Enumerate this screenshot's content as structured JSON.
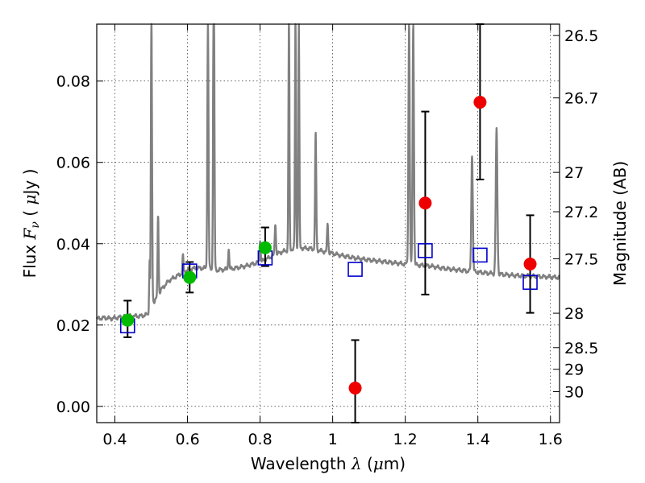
{
  "chart_data": {
    "type": "scatter",
    "title": "",
    "xlabel_parts": [
      "Wavelength ",
      "λ",
      " (",
      "μ",
      "m)"
    ],
    "ylabel_parts": [
      "Flux  ",
      "F",
      "ν",
      "  ( ",
      "μ",
      "Jy )"
    ],
    "y2label": "Magnitude (AB)",
    "xlim": [
      0.35,
      1.625
    ],
    "ylim": [
      -0.004,
      0.094
    ],
    "grid": true,
    "grid_style": "dotted",
    "x_ticks": [
      0.4,
      0.6,
      0.8,
      1.0,
      1.2,
      1.4,
      1.6
    ],
    "x_tick_labels": [
      "0.4",
      "0.6",
      "0.8",
      "1",
      "1.2",
      "1.4",
      "1.6"
    ],
    "y_ticks": [
      0.0,
      0.02,
      0.04,
      0.06,
      0.08
    ],
    "y_tick_labels": [
      "0.00",
      "0.02",
      "0.04",
      "0.06",
      "0.08"
    ],
    "y2_ticks": [
      {
        "label": "26.5",
        "mag": 26.5
      },
      {
        "label": "26.7",
        "mag": 26.7
      },
      {
        "label": "27",
        "mag": 27.0
      },
      {
        "label": "27.2",
        "mag": 27.2
      },
      {
        "label": "27.5",
        "mag": 27.5
      },
      {
        "label": "28",
        "mag": 28.0
      },
      {
        "label": "28.5",
        "mag": 28.5
      },
      {
        "label": "29",
        "mag": 29.0
      },
      {
        "label": "30",
        "mag": 30.0
      }
    ],
    "colors": {
      "spectrum": "#808080",
      "model_photometry": "#0000cc",
      "detected": "#00bb00",
      "upper_or_weak": "#ee0000",
      "errorbar": "#000000"
    },
    "series": [
      {
        "kind": "spectrum",
        "color": "#808080",
        "continuum": [
          [
            0.35,
            0.0215
          ],
          [
            0.37,
            0.0218
          ],
          [
            0.39,
            0.0216
          ],
          [
            0.42,
            0.022
          ],
          [
            0.45,
            0.0222
          ],
          [
            0.47,
            0.0222
          ],
          [
            0.49,
            0.0226
          ],
          [
            0.498,
            0.0235
          ],
          [
            0.502,
            0.0255
          ],
          [
            0.51,
            0.026
          ],
          [
            0.53,
            0.029
          ],
          [
            0.55,
            0.031
          ],
          [
            0.58,
            0.0325
          ],
          [
            0.6,
            0.0335
          ],
          [
            0.62,
            0.034
          ],
          [
            0.65,
            0.034
          ],
          [
            0.68,
            0.0335
          ],
          [
            0.72,
            0.0338
          ],
          [
            0.76,
            0.0345
          ],
          [
            0.8,
            0.0355
          ],
          [
            0.83,
            0.0368
          ],
          [
            0.86,
            0.038
          ],
          [
            0.9,
            0.039
          ],
          [
            0.94,
            0.0388
          ],
          [
            0.98,
            0.038
          ],
          [
            1.02,
            0.0372
          ],
          [
            1.06,
            0.0365
          ],
          [
            1.1,
            0.036
          ],
          [
            1.15,
            0.0355
          ],
          [
            1.2,
            0.035
          ],
          [
            1.23,
            0.0348
          ],
          [
            1.27,
            0.0345
          ],
          [
            1.3,
            0.034
          ],
          [
            1.35,
            0.0335
          ],
          [
            1.4,
            0.033
          ],
          [
            1.45,
            0.0326
          ],
          [
            1.5,
            0.0322
          ],
          [
            1.55,
            0.032
          ],
          [
            1.6,
            0.0318
          ],
          [
            1.625,
            0.0317
          ]
        ],
        "lines": [
          {
            "x": 0.5007,
            "peak": 0.094,
            "width": 0.0016
          },
          {
            "x": 0.4959,
            "peak": 0.036,
            "width": 0.0014
          },
          {
            "x": 0.519,
            "peak": 0.047,
            "width": 0.0014
          },
          {
            "x": 0.5876,
            "peak": 0.037,
            "width": 0.0014
          },
          {
            "x": 0.655,
            "peak": 0.041,
            "width": 0.0014
          },
          {
            "x": 0.6563,
            "peak": 0.094,
            "width": 0.0016
          },
          {
            "x": 0.6717,
            "peak": 0.094,
            "width": 0.0014
          },
          {
            "x": 0.6731,
            "peak": 0.094,
            "width": 0.0014
          },
          {
            "x": 0.7135,
            "peak": 0.039,
            "width": 0.0014
          },
          {
            "x": 0.8,
            "peak": 0.041,
            "width": 0.0014
          },
          {
            "x": 0.842,
            "peak": 0.045,
            "width": 0.0016
          },
          {
            "x": 0.8795,
            "peak": 0.094,
            "width": 0.0014
          },
          {
            "x": 0.8975,
            "peak": 0.094,
            "width": 0.0014
          },
          {
            "x": 0.9068,
            "peak": 0.094,
            "width": 0.0014
          },
          {
            "x": 0.9531,
            "peak": 0.067,
            "width": 0.0016
          },
          {
            "x": 0.9861,
            "peak": 0.045,
            "width": 0.0016
          },
          {
            "x": 1.2105,
            "peak": 0.094,
            "width": 0.0018
          },
          {
            "x": 1.222,
            "peak": 0.094,
            "width": 0.0018
          },
          {
            "x": 1.384,
            "peak": 0.062,
            "width": 0.002
          },
          {
            "x": 1.4515,
            "peak": 0.068,
            "width": 0.0022
          }
        ]
      },
      {
        "kind": "model_photometry",
        "marker": "open-square",
        "color": "#0000cc",
        "points": [
          {
            "x": 0.435,
            "y": 0.0198
          },
          {
            "x": 0.606,
            "y": 0.0333
          },
          {
            "x": 0.814,
            "y": 0.0365
          },
          {
            "x": 1.062,
            "y": 0.0337
          },
          {
            "x": 1.255,
            "y": 0.0383
          },
          {
            "x": 1.406,
            "y": 0.0372
          },
          {
            "x": 1.544,
            "y": 0.0305
          }
        ]
      },
      {
        "kind": "observed_detected",
        "marker": "filled-circle",
        "color": "#00bb00",
        "points": [
          {
            "x": 0.435,
            "y": 0.0212,
            "ylo": 0.017,
            "yhi": 0.026
          },
          {
            "x": 0.606,
            "y": 0.0317,
            "ylo": 0.028,
            "yhi": 0.0355
          },
          {
            "x": 0.814,
            "y": 0.039,
            "ylo": 0.0345,
            "yhi": 0.044
          }
        ]
      },
      {
        "kind": "observed_weak",
        "marker": "filled-circle",
        "color": "#ee0000",
        "points": [
          {
            "x": 1.062,
            "y": 0.0045,
            "ylo": -0.004,
            "yhi": 0.0163
          },
          {
            "x": 1.255,
            "y": 0.05,
            "ylo": 0.0275,
            "yhi": 0.0725
          },
          {
            "x": 1.406,
            "y": 0.0748,
            "ylo": 0.0558,
            "yhi": 0.094
          },
          {
            "x": 1.544,
            "y": 0.035,
            "ylo": 0.023,
            "yhi": 0.047
          }
        ]
      }
    ]
  }
}
